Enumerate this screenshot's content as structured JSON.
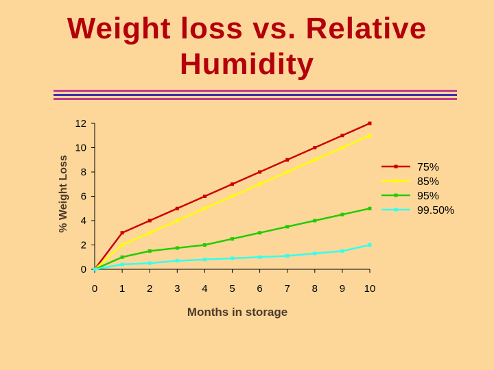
{
  "slide": {
    "title_line1": "Weight loss vs. Relative",
    "title_line2": "Humidity",
    "title_color": "#b3000c",
    "background": "#fdd79a"
  },
  "chart_data": {
    "type": "line",
    "title": "",
    "xlabel": "Months in storage",
    "ylabel": "% Weight Loss",
    "x": [
      0,
      1,
      2,
      3,
      4,
      5,
      6,
      7,
      8,
      9,
      10
    ],
    "xlim": [
      0,
      10
    ],
    "ylim": [
      0,
      12
    ],
    "yticks": [
      0,
      2,
      4,
      6,
      8,
      10,
      12
    ],
    "xticks": [
      "0",
      "1",
      "2",
      "3",
      "4",
      "5",
      "6",
      "7",
      "8",
      "9",
      "10"
    ],
    "grid": false,
    "legend_position": "right",
    "series": [
      {
        "name": "75%",
        "color": "#cc0000",
        "values": [
          0,
          3,
          4,
          5,
          6,
          7,
          8,
          9,
          10,
          11,
          12
        ]
      },
      {
        "name": "85%",
        "color": "#ffff00",
        "values": [
          0,
          2,
          3,
          4,
          5,
          6,
          7,
          8,
          9,
          10,
          11
        ]
      },
      {
        "name": "95%",
        "color": "#22cc00",
        "values": [
          0,
          1,
          1.5,
          1.75,
          2,
          2.5,
          3,
          3.5,
          4,
          4.5,
          5
        ]
      },
      {
        "name": "99.50%",
        "color": "#33ffee",
        "values": [
          0,
          0.4,
          0.5,
          0.7,
          0.8,
          0.9,
          1,
          1.1,
          1.3,
          1.5,
          2
        ]
      }
    ]
  }
}
